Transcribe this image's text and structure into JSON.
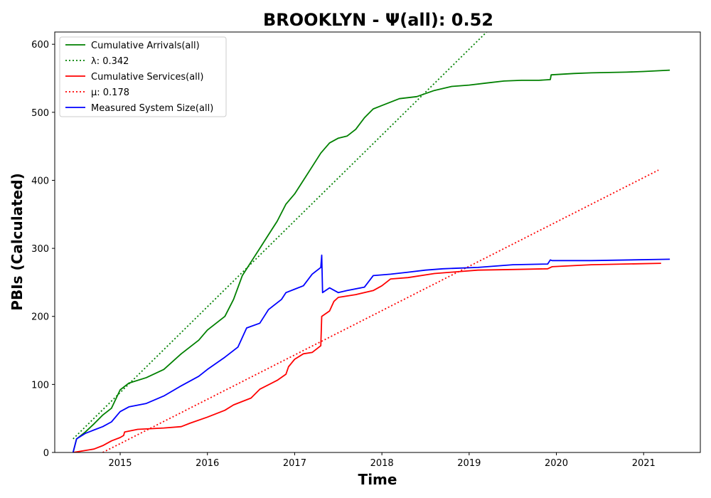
{
  "chart_data": {
    "type": "line",
    "title": "BROOKLYN -  Ψ(all): 0.52",
    "xlabel": "Time",
    "ylabel": "PBIs (Calculated)",
    "xlim": [
      2014.25,
      2021.65
    ],
    "ylim": [
      0,
      618
    ],
    "x_ticks": [
      "2015",
      "2016",
      "2017",
      "2018",
      "2019",
      "2020",
      "2021"
    ],
    "y_ticks": [
      "0",
      "100",
      "200",
      "300",
      "400",
      "500",
      "600"
    ],
    "grid": false,
    "legend_position": "top-left",
    "series": [
      {
        "name": "Cumulative Arrivals(all)",
        "color": "#008000",
        "style": "solid",
        "x": [
          2014.46,
          2014.5,
          2014.6,
          2014.7,
          2014.8,
          2014.9,
          2015.0,
          2015.1,
          2015.3,
          2015.5,
          2015.7,
          2015.9,
          2016.0,
          2016.2,
          2016.3,
          2016.4,
          2016.5,
          2016.6,
          2016.7,
          2016.8,
          2016.9,
          2017.0,
          2017.1,
          2017.2,
          2017.3,
          2017.4,
          2017.5,
          2017.6,
          2017.7,
          2017.8,
          2017.9,
          2018.0,
          2018.2,
          2018.4,
          2018.6,
          2018.8,
          2019.0,
          2019.2,
          2019.4,
          2019.6,
          2019.8,
          2019.93,
          2019.94,
          2020.2,
          2020.4,
          2020.8,
          2021.0,
          2021.3
        ],
        "y": [
          0,
          20,
          30,
          42,
          55,
          65,
          92,
          102,
          110,
          122,
          145,
          165,
          180,
          200,
          225,
          260,
          280,
          300,
          320,
          340,
          365,
          380,
          400,
          420,
          440,
          455,
          462,
          465,
          475,
          492,
          505,
          510,
          520,
          523,
          532,
          538,
          540,
          543,
          546,
          547,
          547,
          548,
          555,
          557,
          558,
          559,
          560,
          562
        ]
      },
      {
        "name": "λ: 0.342",
        "color": "#008000",
        "style": "dotted",
        "x": [
          2014.46,
          2019.2
        ],
        "y": [
          20,
          618
        ]
      },
      {
        "name": "Cumulative Services(all)",
        "color": "#ff0000",
        "style": "solid",
        "x": [
          2014.46,
          2014.7,
          2014.8,
          2014.9,
          2015.0,
          2015.04,
          2015.05,
          2015.2,
          2015.5,
          2015.7,
          2015.8,
          2016.0,
          2016.2,
          2016.3,
          2016.5,
          2016.6,
          2016.8,
          2016.9,
          2016.93,
          2017.0,
          2017.1,
          2017.2,
          2017.3,
          2017.31,
          2017.4,
          2017.45,
          2017.5,
          2017.7,
          2017.9,
          2018.0,
          2018.1,
          2018.3,
          2018.6,
          2018.9,
          2019.1,
          2019.5,
          2019.9,
          2019.95,
          2020.4,
          2021.2
        ],
        "y": [
          0,
          5,
          10,
          17,
          22,
          25,
          30,
          34,
          36,
          38,
          43,
          52,
          62,
          70,
          80,
          93,
          106,
          115,
          126,
          137,
          145,
          147,
          157,
          200,
          208,
          222,
          228,
          232,
          238,
          245,
          255,
          257,
          263,
          266,
          268,
          269,
          270,
          273,
          276,
          278
        ]
      },
      {
        "name": "μ: 0.178",
        "color": "#ff0000",
        "style": "dotted",
        "x": [
          2014.8,
          2021.17
        ],
        "y": [
          0,
          415
        ]
      },
      {
        "name": "Measured System Size(all)",
        "color": "#0000ff",
        "style": "solid",
        "x": [
          2014.46,
          2014.5,
          2014.6,
          2014.7,
          2014.8,
          2014.9,
          2015.0,
          2015.1,
          2015.3,
          2015.5,
          2015.7,
          2015.9,
          2016.0,
          2016.2,
          2016.35,
          2016.45,
          2016.6,
          2016.7,
          2016.85,
          2016.9,
          2017.0,
          2017.1,
          2017.2,
          2017.3,
          2017.31,
          2017.32,
          2017.4,
          2017.5,
          2017.6,
          2017.8,
          2017.9,
          2018.1,
          2018.3,
          2018.5,
          2018.7,
          2018.9,
          2019.1,
          2019.3,
          2019.5,
          2019.9,
          2019.93,
          2019.95,
          2020.4,
          2021.3
        ],
        "y": [
          0,
          20,
          28,
          33,
          38,
          45,
          60,
          67,
          72,
          83,
          98,
          112,
          122,
          140,
          155,
          183,
          190,
          210,
          225,
          235,
          240,
          245,
          262,
          272,
          290,
          235,
          242,
          235,
          238,
          243,
          260,
          262,
          265,
          268,
          270,
          271,
          272,
          274,
          276,
          277,
          283,
          282,
          282,
          284
        ]
      }
    ],
    "legend": [
      {
        "label": "Cumulative Arrivals(all)",
        "color": "#008000",
        "style": "solid"
      },
      {
        "label": "λ: 0.342",
        "color": "#008000",
        "style": "dotted"
      },
      {
        "label": "Cumulative Services(all)",
        "color": "#ff0000",
        "style": "solid"
      },
      {
        "label": "μ: 0.178",
        "color": "#ff0000",
        "style": "dotted"
      },
      {
        "label": "Measured System Size(all)",
        "color": "#0000ff",
        "style": "solid"
      }
    ]
  }
}
